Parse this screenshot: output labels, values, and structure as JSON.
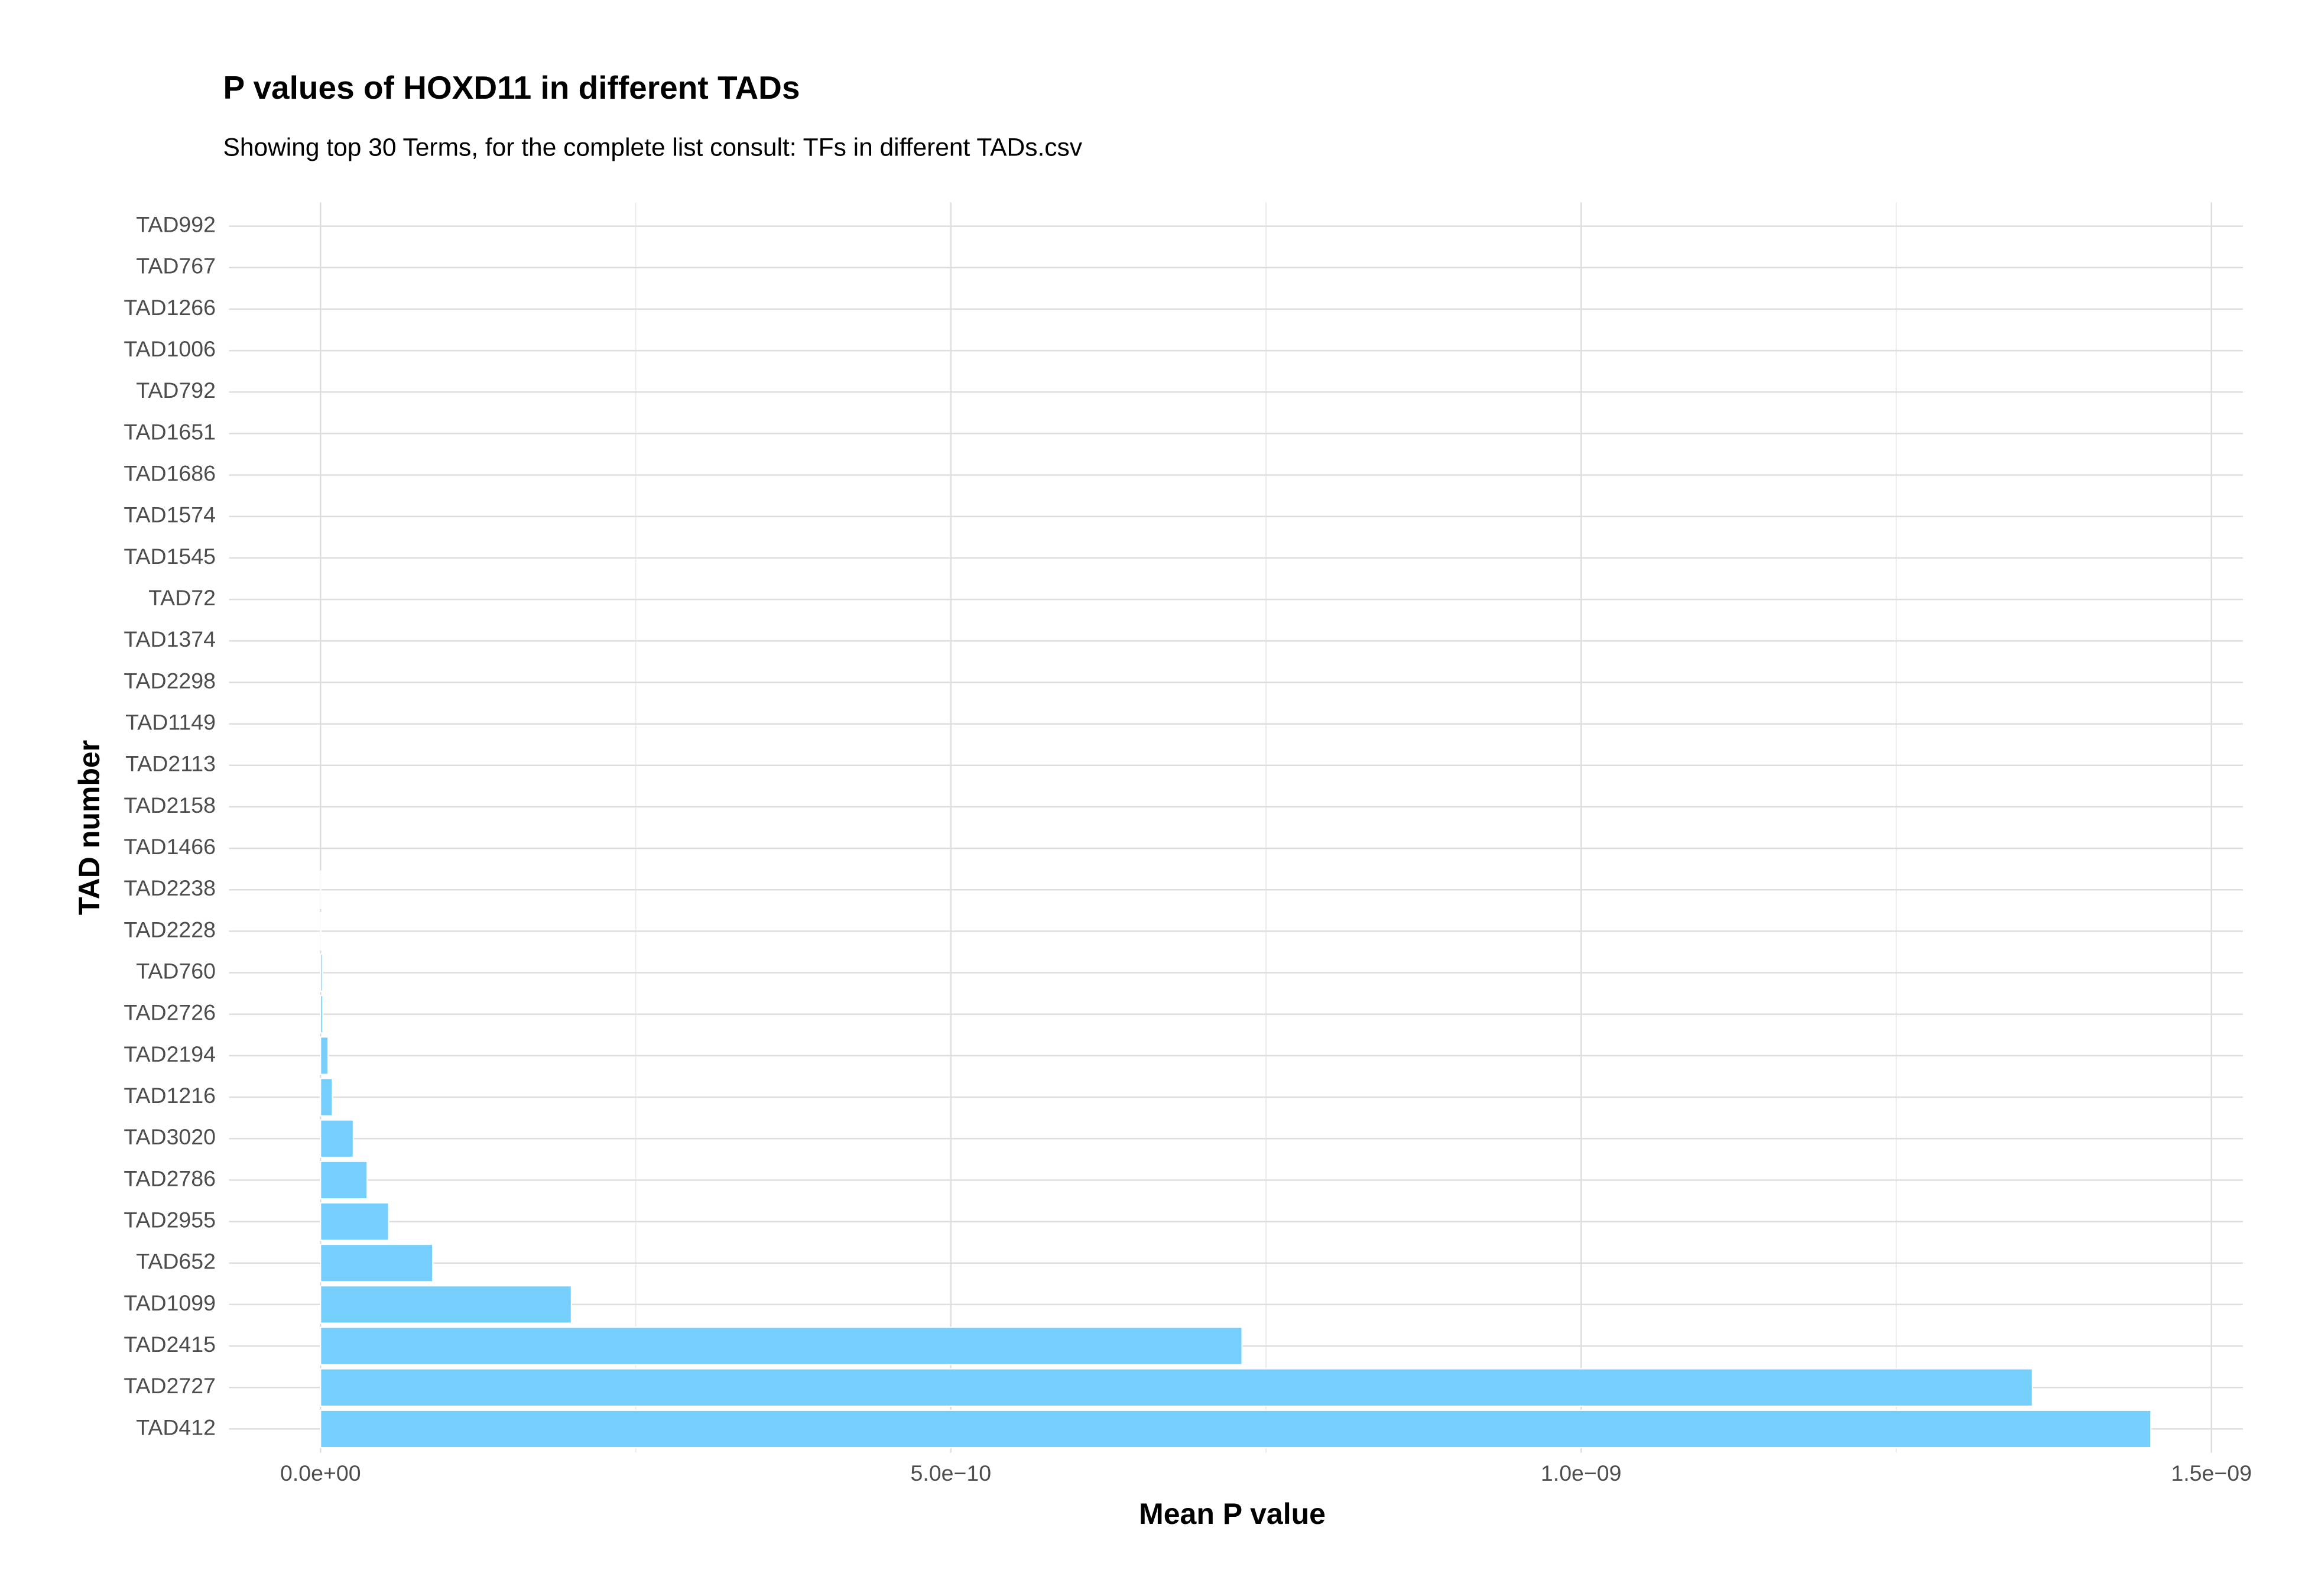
{
  "chart_data": {
    "type": "barh",
    "title": "P values of HOXD11 in different TADs",
    "subtitle": "Showing top 30 Terms, for the complete list consult: TFs in different TADs.csv",
    "x_label": "Mean P value",
    "y_label": "TAD number",
    "categories": [
      "TAD992",
      "TAD767",
      "TAD1266",
      "TAD1006",
      "TAD792",
      "TAD1651",
      "TAD1686",
      "TAD1574",
      "TAD1545",
      "TAD72",
      "TAD1374",
      "TAD2298",
      "TAD1149",
      "TAD2113",
      "TAD2158",
      "TAD1466",
      "TAD2238",
      "TAD2228",
      "TAD760",
      "TAD2726",
      "TAD2194",
      "TAD1216",
      "TAD3020",
      "TAD2786",
      "TAD2955",
      "TAD652",
      "TAD1099",
      "TAD2415",
      "TAD2727",
      "TAD412"
    ],
    "values": [
      0,
      0,
      0,
      0,
      0,
      0,
      0,
      0,
      0,
      0,
      0,
      0,
      0,
      0,
      0,
      0,
      1e-13,
      3e-13,
      1.5e-12,
      1.8e-12,
      6e-12,
      9.4e-12,
      2.6e-11,
      3.7e-11,
      5.4e-11,
      8.9e-11,
      1.99e-10,
      7.31e-10,
      1.358e-09,
      1.452e-09
    ],
    "color": "#75cefc",
    "xlim": [
      -7.26e-11,
      1.525e-09
    ],
    "xticks": [
      {
        "value": 0,
        "label": "0.0e+00"
      },
      {
        "value": 5e-10,
        "label": "5.0e−10"
      },
      {
        "value": 1e-09,
        "label": "1.0e−09"
      },
      {
        "value": 1.5e-09,
        "label": "1.5e−09"
      }
    ],
    "x_minor_ticks": [
      2.5e-10,
      7.5e-10,
      1.25e-09
    ],
    "grid": true
  }
}
